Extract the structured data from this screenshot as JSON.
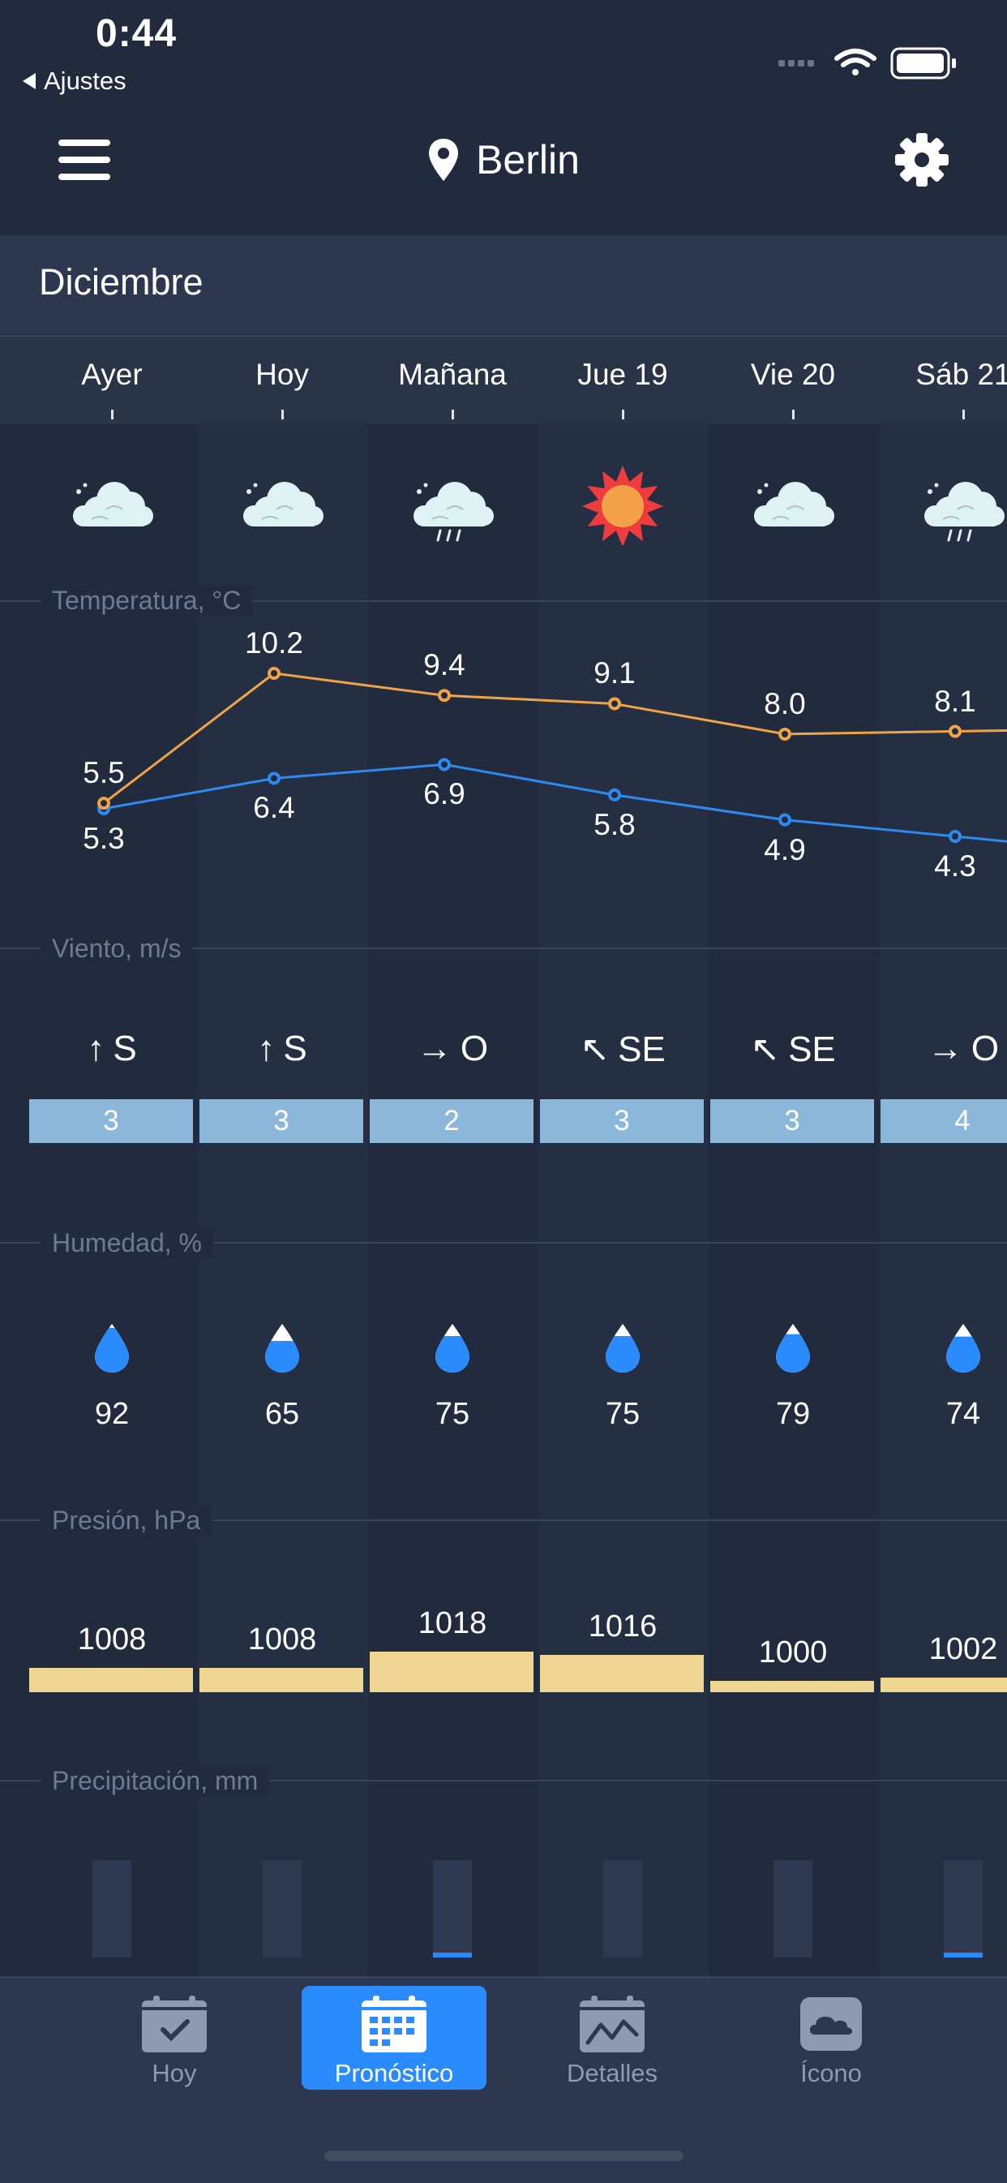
{
  "status": {
    "time": "0:44",
    "back_label": "Ajustes"
  },
  "header": {
    "city": "Berlin"
  },
  "month": "Diciembre",
  "days": [
    "Ayer",
    "Hoy",
    "Mañana",
    "Jue 19",
    "Vie 20",
    "Sáb 21"
  ],
  "weather_icons": [
    "cloudy-icon",
    "cloudy-icon",
    "cloud-rain-icon",
    "sun-icon",
    "cloudy-icon",
    "cloud-rain-icon"
  ],
  "sections": {
    "temperature": "Temperatura, °C",
    "wind": "Viento, m/s",
    "humidity": "Humedad, %",
    "pressure": "Presión, hPa",
    "precipitation": "Precipitación, mm"
  },
  "temperature": {
    "high": [
      "5.5",
      "10.2",
      "9.4",
      "9.1",
      "8.0",
      "8.1"
    ],
    "low": [
      "5.3",
      "6.4",
      "6.9",
      "5.8",
      "4.9",
      "4.3"
    ],
    "colors": {
      "high": "#f0a447",
      "low": "#2f8af0"
    }
  },
  "wind": {
    "arrows": [
      "↑",
      "↑",
      "→",
      "↖",
      "↖",
      "→"
    ],
    "directions": [
      "S",
      "S",
      "O",
      "SE",
      "SE",
      "O"
    ],
    "speeds": [
      "3",
      "3",
      "2",
      "3",
      "3",
      "4"
    ]
  },
  "humidity": [
    "92",
    "65",
    "75",
    "75",
    "79",
    "74"
  ],
  "pressure": [
    "1008",
    "1008",
    "1018",
    "1016",
    "1000",
    "1002"
  ],
  "precipitation": [
    0,
    0,
    0.1,
    0,
    0,
    0.1
  ],
  "tabs": [
    "Hoy",
    "Pronóstico",
    "Detalles",
    "Ícono"
  ],
  "active_tab": "Pronóstico"
}
